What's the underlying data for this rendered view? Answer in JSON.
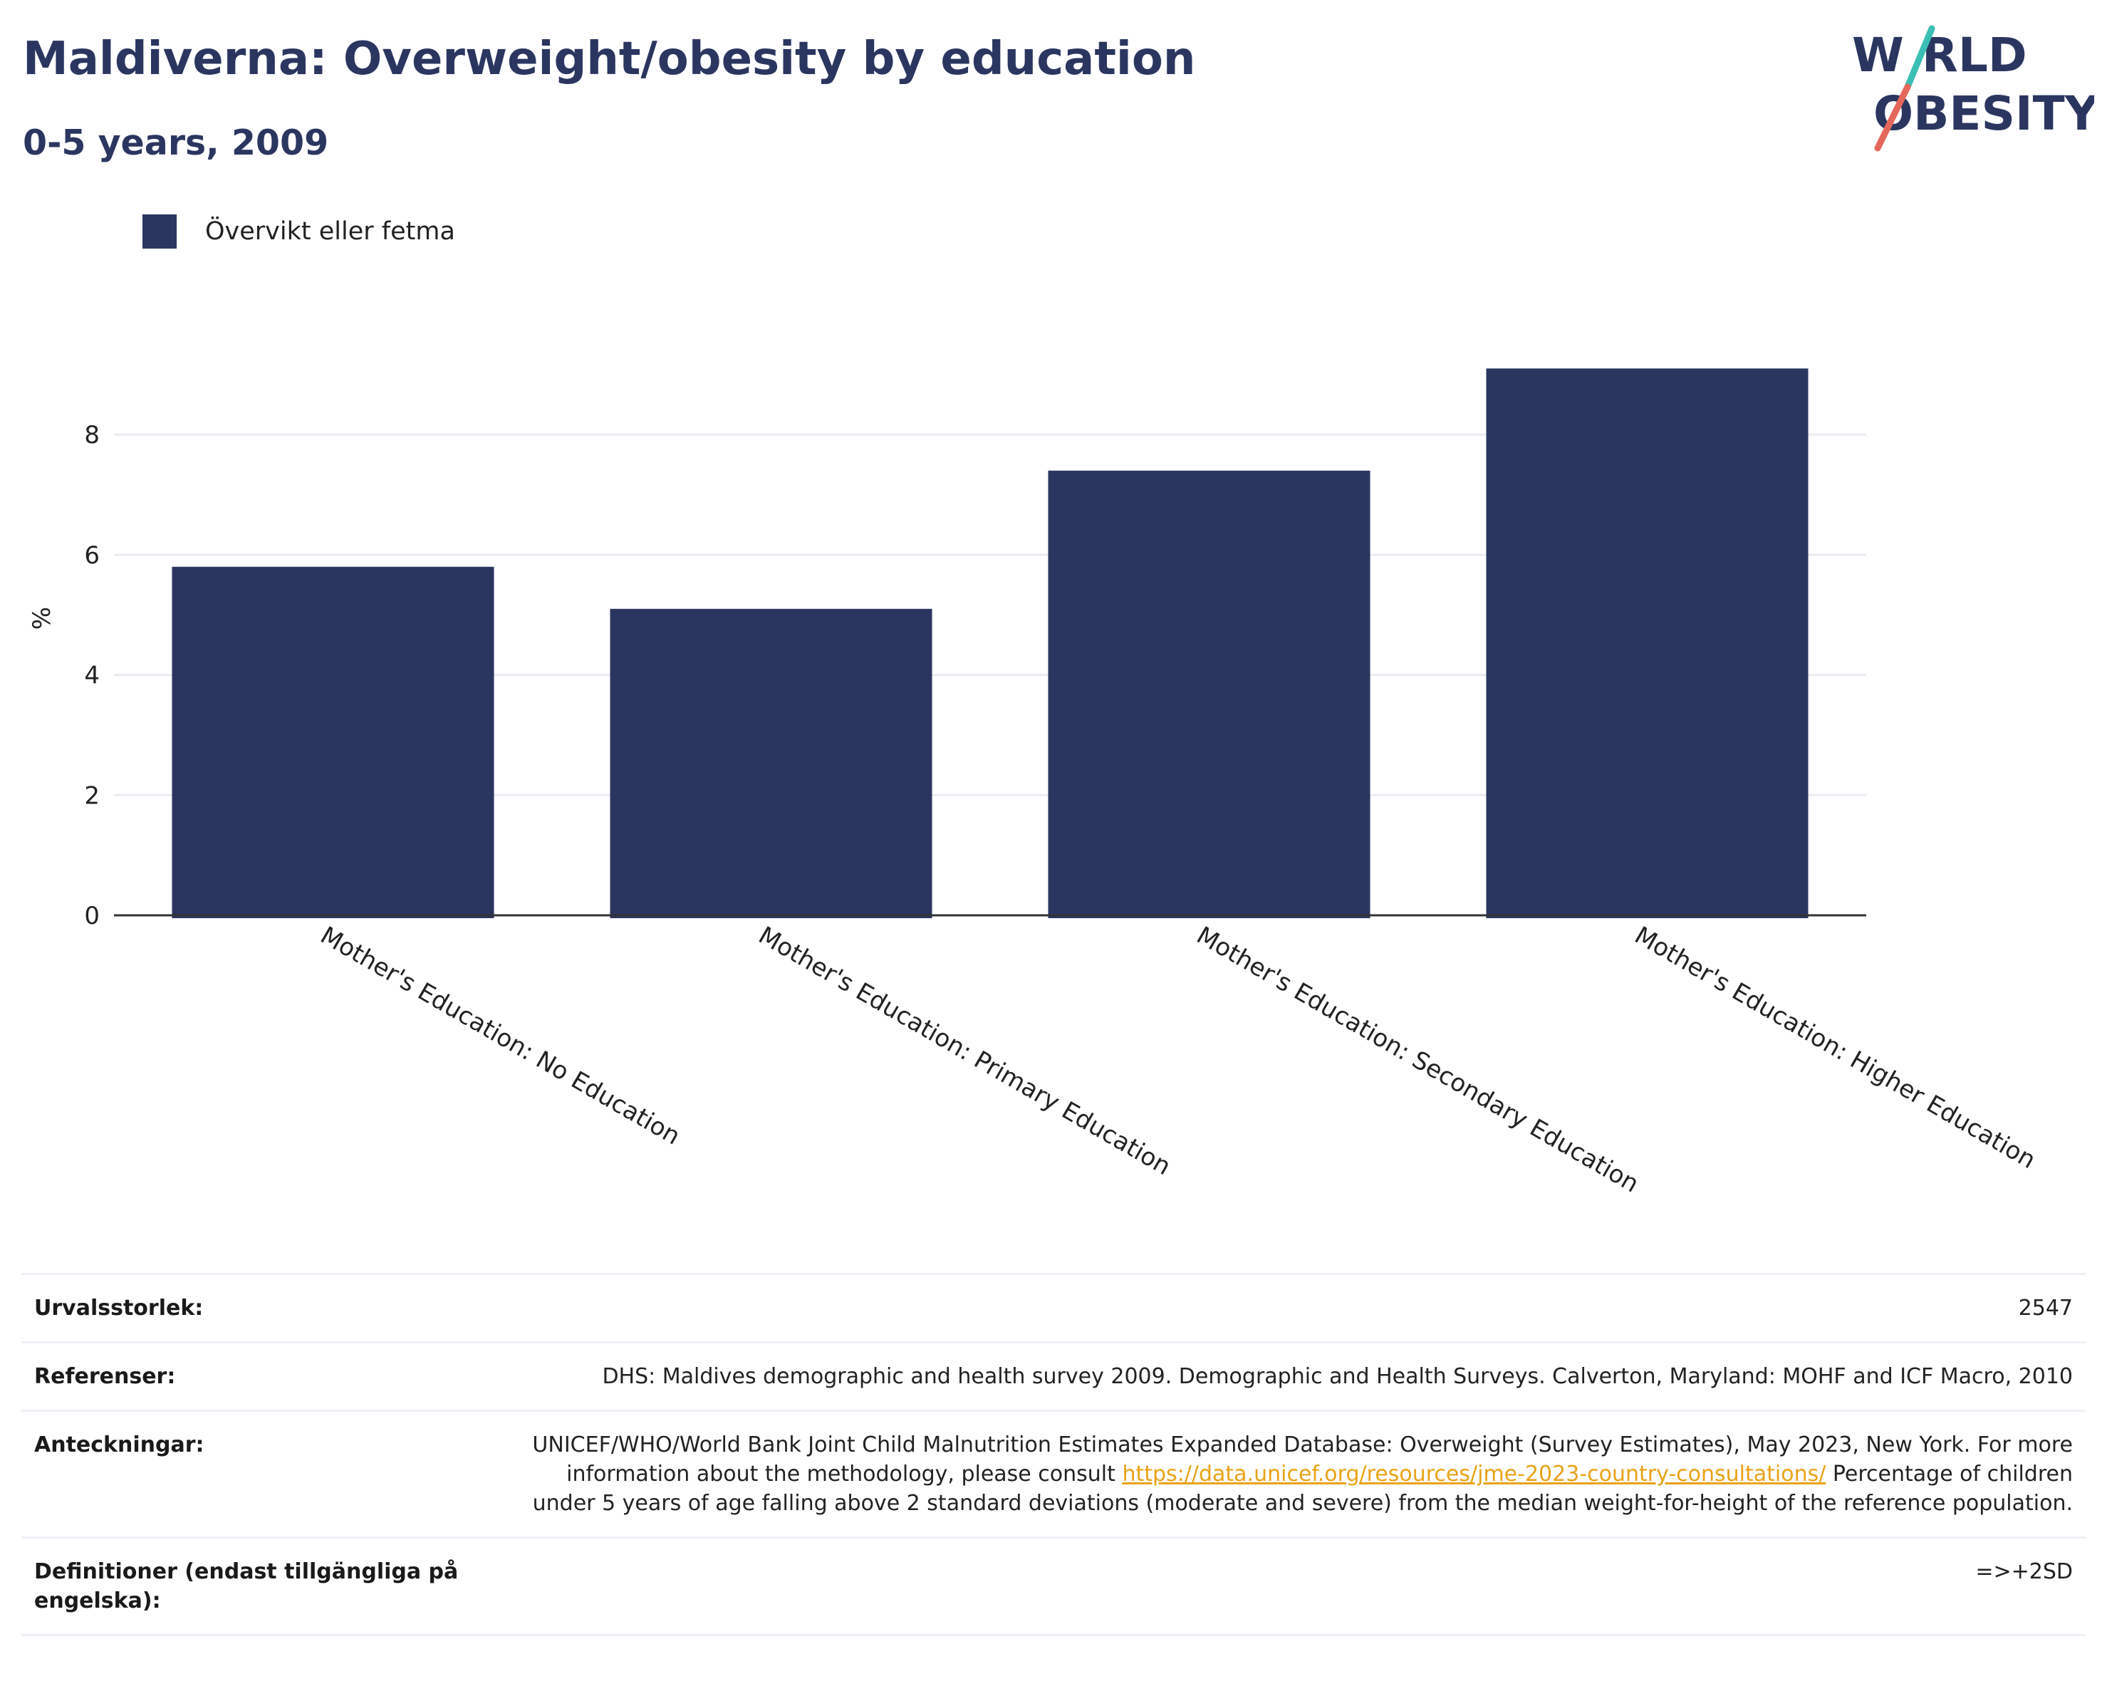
{
  "header": {
    "title": "Maldiverna: Overweight/obesity by education",
    "subtitle": "0-5 years, 2009"
  },
  "logo": {
    "line1": "W",
    "line1b": "RLD",
    "line2": "OBESITY",
    "colors": [
      "#2b3660",
      "#3bbfb4",
      "#e5675b"
    ]
  },
  "legend": {
    "label": "Övervikt eller fetma",
    "color": "#2b3660"
  },
  "chart_data": {
    "type": "bar",
    "categories": [
      "Mother's Education: No Education",
      "Mother's Education: Primary Education",
      "Mother's Education: Secondary Education",
      "Mother's Education: Higher Education"
    ],
    "series": [
      {
        "name": "Övervikt eller fetma",
        "values": [
          5.8,
          5.1,
          7.4,
          9.1
        ],
        "color": "#2b3660"
      }
    ],
    "ylabel": "%",
    "ylim": [
      0,
      9.4
    ],
    "yticks": [
      0,
      2,
      4,
      6,
      8
    ],
    "grid": true
  },
  "info": {
    "sample_label": "Urvalsstorlek:",
    "sample_value": "2547",
    "refs_label": "Referenser:",
    "refs_value": "DHS: Maldives demographic and health survey 2009. Demographic and Health Surveys. Calverton, Maryland: MOHF and ICF Macro, 2010",
    "notes_label": "Anteckningar:",
    "notes_text1": "UNICEF/WHO/World Bank Joint Child Malnutrition Estimates Expanded Database: Overweight (Survey Estimates), May 2023, New York. For more information about the methodology, please consult ",
    "notes_link": "https://data.unicef.org/resources/jme-2023-country-consultations/",
    "notes_text2": " Percentage of children under 5 years of age falling above 2 standard deviations (moderate and severe) from the median weight-for-height of the reference population.",
    "defs_label": "Definitioner (endast tillgängliga på engelska):",
    "defs_value": "=>+2SD"
  }
}
